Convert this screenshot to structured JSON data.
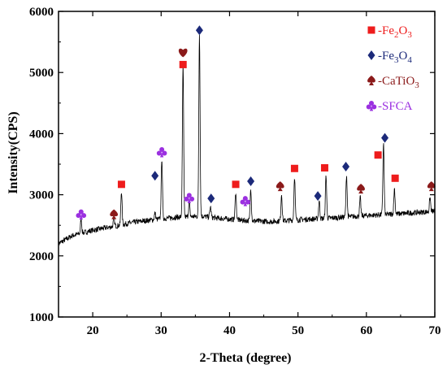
{
  "chart_data": {
    "type": "line",
    "title": "",
    "xlabel": "2-Theta (degree)",
    "ylabel": "Intensity(CPS)",
    "xlim": [
      15,
      70
    ],
    "ylim": [
      1000,
      6000
    ],
    "xticks": [
      20,
      30,
      40,
      50,
      60,
      70
    ],
    "yticks": [
      1000,
      2000,
      3000,
      4000,
      5000,
      6000
    ],
    "grid": false,
    "legend_position": "top-right",
    "baseline": {
      "x": [
        15,
        17,
        20,
        23,
        26,
        28,
        32,
        36,
        38,
        42,
        46,
        50,
        55,
        60,
        65,
        70
      ],
      "y": [
        2200,
        2330,
        2420,
        2480,
        2550,
        2580,
        2630,
        2650,
        2620,
        2580,
        2560,
        2590,
        2620,
        2660,
        2690,
        2730
      ],
      "noise": 45
    },
    "peaks": [
      {
        "x": 18.3,
        "y": 2600
      },
      {
        "x": 23.1,
        "y": 2620
      },
      {
        "x": 24.2,
        "y": 3060
      },
      {
        "x": 29.1,
        "y": 2700
      },
      {
        "x": 30.1,
        "y": 3600
      },
      {
        "x": 33.2,
        "y": 5120
      },
      {
        "x": 34.1,
        "y": 2880
      },
      {
        "x": 35.6,
        "y": 5650
      },
      {
        "x": 37.2,
        "y": 2800
      },
      {
        "x": 40.9,
        "y": 3050
      },
      {
        "x": 43.1,
        "y": 3100
      },
      {
        "x": 47.6,
        "y": 3010
      },
      {
        "x": 49.5,
        "y": 3300
      },
      {
        "x": 53.1,
        "y": 2900
      },
      {
        "x": 54.1,
        "y": 3320
      },
      {
        "x": 57.1,
        "y": 3320
      },
      {
        "x": 59.1,
        "y": 2950
      },
      {
        "x": 62.5,
        "y": 3850
      },
      {
        "x": 64.1,
        "y": 3100
      },
      {
        "x": 69.3,
        "y": 2950
      }
    ],
    "series": [
      {
        "name": "-Fe2O3",
        "label_parts": [
          "-Fe",
          "2",
          "O",
          "3"
        ],
        "marker": "square",
        "color": "#ee1c1c",
        "x": [
          24.2,
          33.2,
          40.9,
          49.5,
          53.9,
          61.7,
          64.2
        ],
        "y": [
          3170,
          5130,
          3170,
          3430,
          3440,
          3650,
          3270
        ]
      },
      {
        "name": "-Fe3O4",
        "label_parts": [
          "-Fe",
          "3",
          "O",
          "4"
        ],
        "marker": "diamond",
        "color": "#1c2a7a",
        "x": [
          29.1,
          35.6,
          37.3,
          43.1,
          52.9,
          57.0,
          62.7
        ],
        "y": [
          3310,
          5690,
          2940,
          3220,
          2980,
          3460,
          3930
        ]
      },
      {
        "name": "-CaTiO3",
        "label_parts": [
          "-CaTiO",
          "3"
        ],
        "marker": "spade",
        "color": "#8b1a1a",
        "x": [
          23.1,
          33.2,
          47.4,
          59.2,
          69.5
        ],
        "y": [
          2680,
          5330,
          3140,
          3100,
          3140
        ]
      },
      {
        "name": "-SFCA",
        "label_parts": [
          "-SFCA"
        ],
        "marker": "club",
        "color": "#9b30e0",
        "x": [
          18.3,
          30.1,
          34.1,
          42.3
        ],
        "y": [
          2680,
          3700,
          2950,
          2900
        ]
      }
    ]
  }
}
